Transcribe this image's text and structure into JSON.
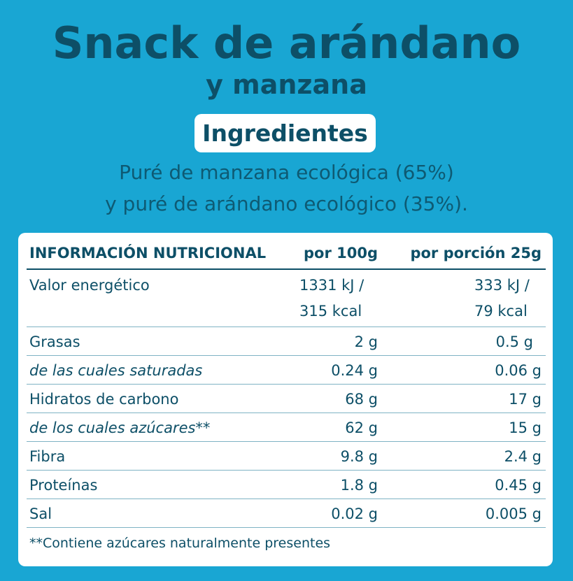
{
  "header": {
    "title": "Snack de arándano",
    "subtitle": "y manzana"
  },
  "ingredients": {
    "label": "Ingredientes",
    "line1": "Puré de manzana ecológica (65%)",
    "line2": "y puré de arándano ecológico (35%)."
  },
  "table": {
    "headers": [
      "INFORMACIÓN NUTRICIONAL",
      "por 100g",
      "por porción 25g"
    ],
    "energy": {
      "label": "Valor energético",
      "per100_kj": "1331 kJ /",
      "per100_kcal": "315 kcal",
      "portion_kj": "333 kJ /",
      "portion_kcal": "79 kcal"
    },
    "rows": [
      {
        "label": "Grasas",
        "per100": "2 g",
        "portion": "0.5 g"
      },
      {
        "label": "de las cuales saturadas",
        "per100": "0.24 g",
        "portion": "0.06 g"
      },
      {
        "label": "Hidratos de carbono",
        "per100": "68 g",
        "portion": "17 g"
      },
      {
        "label": "de los cuales azúcares**",
        "per100": "62 g",
        "portion": "15 g"
      },
      {
        "label": "Fibra",
        "per100": "9.8 g",
        "portion": "2.4 g"
      },
      {
        "label": "Proteínas",
        "per100": "1.8 g",
        "portion": "0.45 g"
      },
      {
        "label": "Sal",
        "per100": "0.02 g",
        "portion": "0.005 g"
      }
    ],
    "footnote": "**Contiene azúcares naturalmente presentes"
  }
}
